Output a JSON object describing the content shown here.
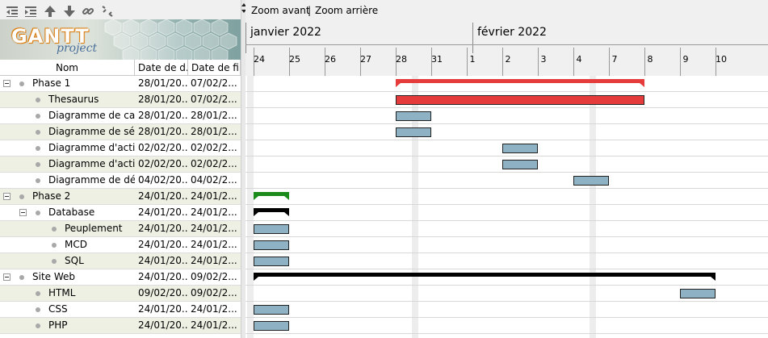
{
  "toolbar": {
    "icons": [
      "outdent-icon",
      "indent-icon",
      "move-up-icon",
      "move-down-icon",
      "link-icon",
      "unlink-icon"
    ]
  },
  "logo": {
    "brand": "GANTT",
    "sub": "project"
  },
  "columns": {
    "name": "Nom",
    "start": "Date de d...",
    "end": "Date de fin"
  },
  "tasks": [
    {
      "name": "Phase 1",
      "start": "28/01/20...",
      "end": "07/02/2...",
      "level": 0,
      "group": true
    },
    {
      "name": "Thesaurus",
      "start": "28/01/20...",
      "end": "07/02/2...",
      "level": 1,
      "group": false
    },
    {
      "name": "Diagramme de cas",
      "start": "28/01/20...",
      "end": "28/01/2...",
      "level": 1,
      "group": false
    },
    {
      "name": "Diagramme de sé...",
      "start": "28/01/20...",
      "end": "28/01/2...",
      "level": 1,
      "group": false
    },
    {
      "name": "Diagramme d'acti...",
      "start": "02/02/20...",
      "end": "02/02/2...",
      "level": 1,
      "group": false
    },
    {
      "name": "Diagramme d'acti...",
      "start": "02/02/20...",
      "end": "02/02/2...",
      "level": 1,
      "group": false
    },
    {
      "name": "Diagramme de dé...",
      "start": "04/02/20...",
      "end": "04/02/2...",
      "level": 1,
      "group": false
    },
    {
      "name": "Phase 2",
      "start": "24/01/20...",
      "end": "24/01/2...",
      "level": 0,
      "group": true
    },
    {
      "name": "Database",
      "start": "24/01/20...",
      "end": "24/01/2...",
      "level": 1,
      "group": true
    },
    {
      "name": "Peuplement",
      "start": "24/01/20...",
      "end": "24/01/2...",
      "level": 2,
      "group": false
    },
    {
      "name": "MCD",
      "start": "24/01/20...",
      "end": "24/01/2...",
      "level": 2,
      "group": false
    },
    {
      "name": "SQL",
      "start": "24/01/20...",
      "end": "24/01/2...",
      "level": 2,
      "group": false
    },
    {
      "name": "Site Web",
      "start": "24/01/20...",
      "end": "09/02/2...",
      "level": 0,
      "group": true
    },
    {
      "name": "HTML",
      "start": "09/02/20...",
      "end": "09/02/2...",
      "level": 1,
      "group": false
    },
    {
      "name": "CSS",
      "start": "24/01/20...",
      "end": "24/01/2...",
      "level": 1,
      "group": false
    },
    {
      "name": "PHP",
      "start": "24/01/20...",
      "end": "24/01/2...",
      "level": 1,
      "group": false
    }
  ],
  "zoom": {
    "in": "Zoom avant",
    "sep": "|",
    "out": "Zoom arrière"
  },
  "months": [
    "janvier 2022",
    "février 2022"
  ],
  "days": [
    "24",
    "25",
    "26",
    "27",
    "28",
    "31",
    "1",
    "2",
    "3",
    "4",
    "7",
    "8",
    "9",
    "10"
  ],
  "colors": {
    "summary_red": "#e53b3b",
    "task_blue": "#8fb1c4",
    "summary_green": "#1a8a1a",
    "summary_black": "#000000"
  }
}
